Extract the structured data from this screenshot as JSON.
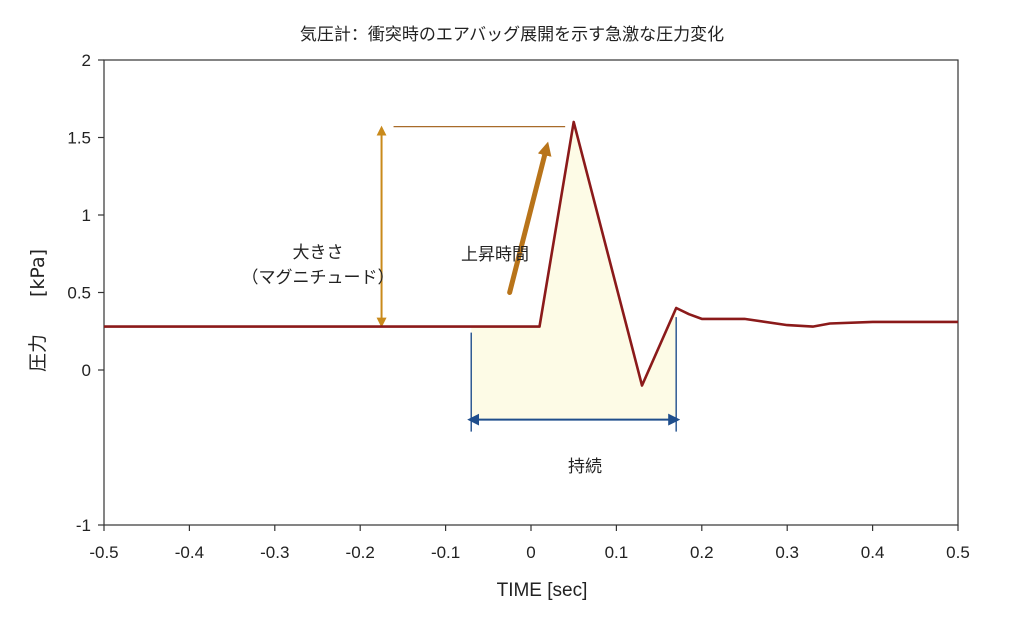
{
  "chart_data": {
    "type": "line",
    "title": "気圧計：衝突時のエアバッグ展開を示す急激な圧力変化",
    "xlabel": "TIME [sec]",
    "ylabel": "圧力",
    "ylabel_unit": "[kPa]",
    "xlim": [
      -0.5,
      0.5
    ],
    "ylim": [
      -1,
      2
    ],
    "xticks": [
      -0.5,
      -0.4,
      -0.3,
      -0.2,
      -0.1,
      0,
      0.1,
      0.2,
      0.3,
      0.4,
      0.5
    ],
    "yticks": [
      -1,
      0,
      0.5,
      1,
      1.5,
      2
    ],
    "xtick_labels": [
      "-0.5",
      "-0.4",
      "-0.3",
      "-0.2",
      "-0.1",
      "0",
      "0.1",
      "0.2",
      "0.3",
      "0.4",
      "0.5"
    ],
    "ytick_labels": [
      "-1",
      "0",
      "0.5",
      "1",
      "1.5",
      "2"
    ],
    "grid": false,
    "series": [
      {
        "color": "#8b1a1a",
        "x": [
          -0.5,
          0.01,
          0.05,
          0.13,
          0.17,
          0.185,
          0.2,
          0.25,
          0.3,
          0.33,
          0.35,
          0.4,
          0.45,
          0.5
        ],
        "y": [
          0.28,
          0.28,
          1.6,
          -0.1,
          0.4,
          0.36,
          0.33,
          0.33,
          0.29,
          0.28,
          0.3,
          0.31,
          0.31,
          0.31
        ]
      }
    ],
    "annotations": {
      "magnitude": {
        "label_line1": "大きさ",
        "label_line2": "（マグニチュード）",
        "x": -0.175,
        "y_from": 0.28,
        "y_to": 1.57,
        "ref_line_x_to": 0.04,
        "color": "#c98a1b"
      },
      "rise_time": {
        "label": "上昇時間",
        "from": [
          -0.025,
          0.5
        ],
        "to": [
          0.018,
          1.43
        ],
        "color": "#b8741a"
      },
      "duration": {
        "label": "持続",
        "x_from": -0.07,
        "x_to": 0.17,
        "y": -0.32,
        "color": "#1f4e8c",
        "fill_color": "#fdfbe6"
      }
    }
  }
}
